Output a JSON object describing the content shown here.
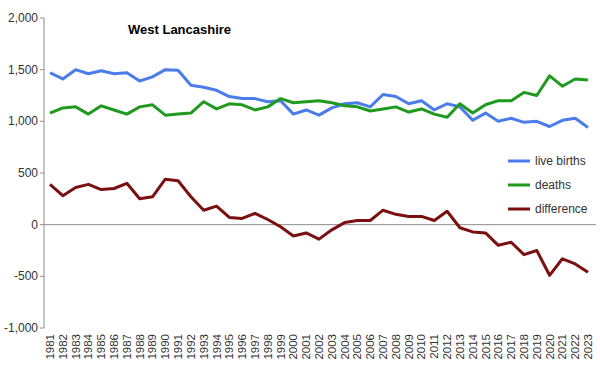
{
  "chart_data": {
    "type": "line",
    "title": "West Lancashire",
    "categories": [
      "1981",
      "1982",
      "1983",
      "1984",
      "1985",
      "1986",
      "1987",
      "1988",
      "1989",
      "1990",
      "1991",
      "1992",
      "1993",
      "1994",
      "1995",
      "1996",
      "1997",
      "1998",
      "1999",
      "2000",
      "2001",
      "2002",
      "2003",
      "2004",
      "2005",
      "2006",
      "2007",
      "2008",
      "2009",
      "2010",
      "2011",
      "2012",
      "2013",
      "2014",
      "2015",
      "2016",
      "2017",
      "2018",
      "2019",
      "2020",
      "2021",
      "2022",
      "2023"
    ],
    "series": [
      {
        "name": "live births",
        "color": "#4a7deb",
        "values": [
          1470,
          1410,
          1500,
          1460,
          1490,
          1460,
          1470,
          1390,
          1430,
          1500,
          1495,
          1350,
          1330,
          1300,
          1240,
          1220,
          1220,
          1190,
          1200,
          1070,
          1110,
          1060,
          1130,
          1170,
          1180,
          1140,
          1260,
          1240,
          1170,
          1200,
          1110,
          1170,
          1140,
          1010,
          1080,
          1000,
          1030,
          990,
          1000,
          950,
          1010,
          1030,
          940
        ]
      },
      {
        "name": "deaths",
        "color": "#1f9a1f",
        "values": [
          1080,
          1130,
          1140,
          1070,
          1150,
          1110,
          1070,
          1140,
          1160,
          1060,
          1070,
          1080,
          1190,
          1120,
          1170,
          1160,
          1110,
          1140,
          1220,
          1180,
          1190,
          1200,
          1180,
          1150,
          1140,
          1100,
          1120,
          1140,
          1090,
          1120,
          1070,
          1040,
          1170,
          1080,
          1160,
          1200,
          1200,
          1280,
          1250,
          1440,
          1340,
          1410,
          1400
        ]
      },
      {
        "name": "difference",
        "color": "#7a1010",
        "values": [
          390,
          280,
          360,
          390,
          340,
          350,
          400,
          250,
          270,
          440,
          425,
          270,
          140,
          180,
          70,
          60,
          110,
          50,
          -20,
          -110,
          -80,
          -140,
          -50,
          20,
          40,
          40,
          140,
          100,
          80,
          80,
          40,
          130,
          -30,
          -70,
          -80,
          -200,
          -170,
          -290,
          -250,
          -490,
          -330,
          -380,
          -460
        ]
      }
    ],
    "ylim": [
      -1000,
      2000
    ],
    "yticks": [
      {
        "value": -1000,
        "label": "-1,000"
      },
      {
        "value": -500,
        "label": "-500"
      },
      0,
      500,
      {
        "value": 1000,
        "label": "1,000"
      },
      {
        "value": 1500,
        "label": "1,500"
      },
      {
        "value": 2000,
        "label": "2,000"
      }
    ],
    "grid": false,
    "legend": "right"
  }
}
